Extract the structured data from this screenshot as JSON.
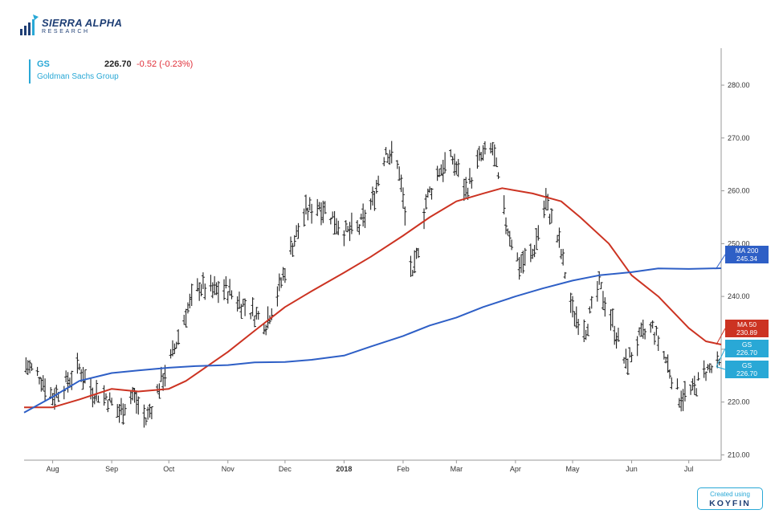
{
  "logo": {
    "name": "SIERRA ALPHA",
    "sub": "RESEARCH"
  },
  "header": {
    "symbol": "GS",
    "price": "226.70",
    "change": "-0.52 (-0.23%)",
    "company": "Goldman Sachs Group"
  },
  "watermark": {
    "line1": "Created using",
    "line2": "KOYFIN"
  },
  "colors": {
    "bars": "#222222",
    "ma50": "#cc3322",
    "ma200": "#2e5fc6",
    "accent": "#29a8d6"
  },
  "chart_data": {
    "type": "line",
    "ylim": [
      209,
      287
    ],
    "y_ticks": [
      210,
      220,
      230,
      240,
      250,
      260,
      270,
      280
    ],
    "y_tick_labels": [
      "210.00",
      "220.00",
      "230.00",
      "240.00",
      "250.00",
      "260.00",
      "270.00",
      "280.00"
    ],
    "x_ticks": [
      {
        "date": "2017-08-01",
        "label": "Aug"
      },
      {
        "date": "2017-09-01",
        "label": "Sep"
      },
      {
        "date": "2017-10-01",
        "label": "Oct"
      },
      {
        "date": "2017-11-01",
        "label": "Nov"
      },
      {
        "date": "2017-12-01",
        "label": "Dec"
      },
      {
        "date": "2018-01-01",
        "label": "2018"
      },
      {
        "date": "2018-02-01",
        "label": "Feb"
      },
      {
        "date": "2018-03-01",
        "label": "Mar"
      },
      {
        "date": "2018-04-01",
        "label": "Apr"
      },
      {
        "date": "2018-05-01",
        "label": "May"
      },
      {
        "date": "2018-06-01",
        "label": "Jun"
      },
      {
        "date": "2018-07-01",
        "label": "Jul"
      }
    ],
    "x_range": [
      "2017-07-17",
      "2018-07-18"
    ],
    "price_bars": {
      "name": "GS",
      "points": [
        [
          "2017-07-18",
          227.0
        ],
        [
          "2017-07-25",
          225.0
        ],
        [
          "2017-08-01",
          221.0
        ],
        [
          "2017-08-08",
          223.5
        ],
        [
          "2017-08-15",
          226.5
        ],
        [
          "2017-08-22",
          222.0
        ],
        [
          "2017-08-29",
          221.0
        ],
        [
          "2017-09-05",
          218.0
        ],
        [
          "2017-09-12",
          221.5
        ],
        [
          "2017-09-19",
          216.5
        ],
        [
          "2017-09-26",
          223.0
        ],
        [
          "2017-10-03",
          229.0
        ],
        [
          "2017-10-10",
          237.0
        ],
        [
          "2017-10-17",
          242.0
        ],
        [
          "2017-10-24",
          241.0
        ],
        [
          "2017-10-31",
          241.5
        ],
        [
          "2017-11-07",
          239.0
        ],
        [
          "2017-11-14",
          237.0
        ],
        [
          "2017-11-21",
          235.0
        ],
        [
          "2017-11-28",
          241.5
        ],
        [
          "2017-12-05",
          250.0
        ],
        [
          "2017-12-12",
          256.0
        ],
        [
          "2017-12-19",
          257.5
        ],
        [
          "2017-12-26",
          255.0
        ],
        [
          "2018-01-02",
          252.0
        ],
        [
          "2018-01-09",
          253.0
        ],
        [
          "2018-01-16",
          258.0
        ],
        [
          "2018-01-23",
          268.0
        ],
        [
          "2018-01-30",
          264.0
        ],
        [
          "2018-02-06",
          243.0
        ],
        [
          "2018-02-13",
          258.0
        ],
        [
          "2018-02-20",
          264.0
        ],
        [
          "2018-02-27",
          266.0
        ],
        [
          "2018-03-06",
          260.0
        ],
        [
          "2018-03-13",
          266.0
        ],
        [
          "2018-03-20",
          268.0
        ],
        [
          "2018-03-27",
          254.0
        ],
        [
          "2018-04-03",
          246.0
        ],
        [
          "2018-04-10",
          248.0
        ],
        [
          "2018-04-17",
          258.0
        ],
        [
          "2018-04-24",
          250.0
        ],
        [
          "2018-05-01",
          237.0
        ],
        [
          "2018-05-08",
          234.0
        ],
        [
          "2018-05-15",
          242.0
        ],
        [
          "2018-05-22",
          235.0
        ],
        [
          "2018-05-29",
          227.0
        ],
        [
          "2018-06-05",
          232.0
        ],
        [
          "2018-06-12",
          234.0
        ],
        [
          "2018-06-19",
          228.0
        ],
        [
          "2018-06-26",
          221.0
        ],
        [
          "2018-07-03",
          222.0
        ],
        [
          "2018-07-10",
          226.0
        ],
        [
          "2018-07-17",
          226.7
        ]
      ]
    },
    "series": [
      {
        "name": "MA 50",
        "color": "#cc3322",
        "points": [
          [
            "2017-07-17",
            219.0
          ],
          [
            "2017-08-01",
            219.0
          ],
          [
            "2017-08-15",
            220.5
          ],
          [
            "2017-09-01",
            222.5
          ],
          [
            "2017-09-15",
            222.0
          ],
          [
            "2017-10-01",
            222.5
          ],
          [
            "2017-10-10",
            224.0
          ],
          [
            "2017-10-20",
            226.5
          ],
          [
            "2017-11-01",
            229.5
          ],
          [
            "2017-11-15",
            233.5
          ],
          [
            "2017-12-01",
            238.0
          ],
          [
            "2017-12-15",
            241.0
          ],
          [
            "2018-01-01",
            244.5
          ],
          [
            "2018-01-15",
            247.5
          ],
          [
            "2018-02-01",
            251.5
          ],
          [
            "2018-02-15",
            255.0
          ],
          [
            "2018-03-01",
            258.0
          ],
          [
            "2018-03-15",
            259.5
          ],
          [
            "2018-03-25",
            260.5
          ],
          [
            "2018-04-10",
            259.5
          ],
          [
            "2018-04-25",
            258.0
          ],
          [
            "2018-05-05",
            255.0
          ],
          [
            "2018-05-20",
            250.0
          ],
          [
            "2018-06-01",
            244.0
          ],
          [
            "2018-06-15",
            240.0
          ],
          [
            "2018-07-01",
            234.0
          ],
          [
            "2018-07-10",
            231.5
          ],
          [
            "2018-07-18",
            230.89
          ]
        ]
      },
      {
        "name": "MA 200",
        "color": "#2e5fc6",
        "points": [
          [
            "2017-07-17",
            218.0
          ],
          [
            "2017-08-01",
            221.0
          ],
          [
            "2017-08-15",
            224.0
          ],
          [
            "2017-09-01",
            225.5
          ],
          [
            "2017-09-15",
            226.0
          ],
          [
            "2017-10-01",
            226.5
          ],
          [
            "2017-10-15",
            226.8
          ],
          [
            "2017-11-01",
            227.0
          ],
          [
            "2017-11-15",
            227.5
          ],
          [
            "2017-12-01",
            227.6
          ],
          [
            "2017-12-15",
            228.0
          ],
          [
            "2018-01-01",
            228.8
          ],
          [
            "2018-01-15",
            230.5
          ],
          [
            "2018-02-01",
            232.5
          ],
          [
            "2018-02-15",
            234.5
          ],
          [
            "2018-03-01",
            236.0
          ],
          [
            "2018-03-15",
            238.0
          ],
          [
            "2018-04-01",
            240.0
          ],
          [
            "2018-04-15",
            241.5
          ],
          [
            "2018-05-01",
            243.0
          ],
          [
            "2018-05-15",
            244.0
          ],
          [
            "2018-06-01",
            244.6
          ],
          [
            "2018-06-15",
            245.3
          ],
          [
            "2018-07-01",
            245.2
          ],
          [
            "2018-07-18",
            245.34
          ]
        ]
      }
    ],
    "value_tags": [
      {
        "label": "MA 200",
        "value": "245.34",
        "color": "#2e5fc6"
      },
      {
        "label": "MA 50",
        "value": "230.89",
        "color": "#cc3322"
      },
      {
        "label": "GS",
        "value": "226.70",
        "color": "#29a8d6"
      },
      {
        "label": "GS",
        "value": "226.70",
        "color": "#29a8d6"
      }
    ]
  }
}
